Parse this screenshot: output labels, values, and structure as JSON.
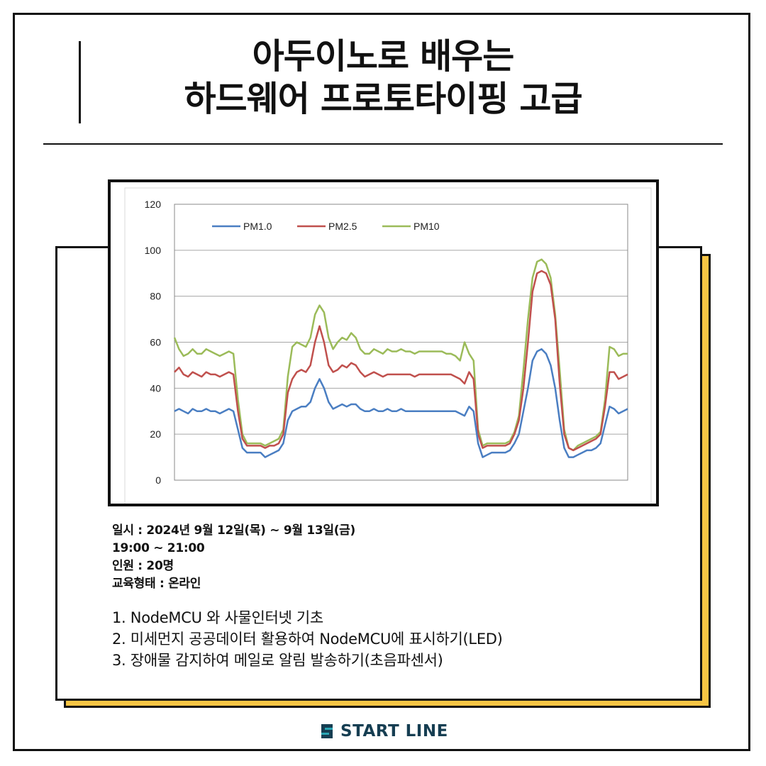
{
  "title": {
    "line1": "아두이노로 배우는",
    "line2": "하드웨어 프로토타이핑 고급"
  },
  "details": {
    "date": "일시 : 2024년 9월 12일(목) ~ 9월 13일(금)",
    "time": "19:00 ~ 21:00",
    "capacity": "인원 : 20명",
    "format": "교육형태 : 온라인"
  },
  "curriculum": [
    "1. NodeMCU 와 사물인터넷 기초",
    "2. 미세먼지 공공데이터 활용하여 NodeMCU에 표시하기(LED)",
    "3. 장애물 감지하여 메일로 알림 발송하기(초음파센서)"
  ],
  "logo": {
    "text": "START LINE",
    "icon": "start-line-s-icon"
  },
  "colors": {
    "accent_yellow": "#f7c544",
    "pm1": "#4a7ec2",
    "pm25": "#c0504d",
    "pm10": "#9bbb59",
    "logo_dark": "#163e52",
    "logo_teal": "#2aa6b5"
  },
  "chart_data": {
    "type": "line",
    "ylim": [
      0,
      120
    ],
    "yticks": [
      0,
      20,
      40,
      60,
      80,
      100,
      120
    ],
    "grid": true,
    "legend": "top-left",
    "x": [
      0,
      1,
      2,
      3,
      4,
      5,
      6,
      7,
      8,
      9,
      10,
      11,
      12,
      13,
      14,
      15,
      16,
      17,
      18,
      19,
      20,
      21,
      22,
      23,
      24,
      25,
      26,
      27,
      28,
      29,
      30,
      31,
      32,
      33,
      34,
      35,
      36,
      37,
      38,
      39,
      40,
      41,
      42,
      43,
      44,
      45,
      46,
      47,
      48,
      49,
      50,
      51,
      52,
      53,
      54,
      55,
      56,
      57,
      58,
      59,
      60,
      61,
      62,
      63,
      64,
      65,
      66,
      67,
      68,
      69,
      70,
      71,
      72,
      73,
      74,
      75,
      76,
      77,
      78,
      79,
      80,
      81,
      82,
      83,
      84,
      85,
      86,
      87,
      88,
      89,
      90,
      91,
      92,
      93,
      94,
      95,
      96,
      97,
      98,
      99,
      100
    ],
    "series": [
      {
        "name": "PM1.0",
        "values": [
          30,
          31,
          30,
          29,
          31,
          30,
          30,
          31,
          30,
          30,
          29,
          30,
          31,
          30,
          22,
          14,
          12,
          12,
          12,
          12,
          10,
          11,
          12,
          13,
          16,
          26,
          30,
          31,
          32,
          32,
          34,
          40,
          44,
          40,
          34,
          31,
          32,
          33,
          32,
          33,
          33,
          31,
          30,
          30,
          31,
          30,
          30,
          31,
          30,
          30,
          31,
          30,
          30,
          30,
          30,
          30,
          30,
          30,
          30,
          30,
          30,
          30,
          30,
          29,
          28,
          32,
          30,
          16,
          10,
          11,
          12,
          12,
          12,
          12,
          13,
          16,
          20,
          30,
          40,
          52,
          56,
          57,
          55,
          50,
          40,
          26,
          14,
          10,
          10,
          11,
          12,
          13,
          13,
          14,
          16,
          24,
          32,
          31,
          29,
          30,
          31
        ]
      },
      {
        "name": "PM2.5",
        "values": [
          47,
          49,
          46,
          45,
          47,
          46,
          45,
          47,
          46,
          46,
          45,
          46,
          47,
          46,
          30,
          18,
          15,
          15,
          15,
          15,
          14,
          15,
          15,
          16,
          20,
          38,
          44,
          47,
          48,
          47,
          50,
          60,
          67,
          60,
          50,
          47,
          48,
          50,
          49,
          51,
          50,
          47,
          45,
          46,
          47,
          46,
          45,
          46,
          46,
          46,
          46,
          46,
          46,
          45,
          46,
          46,
          46,
          46,
          46,
          46,
          46,
          46,
          45,
          44,
          42,
          47,
          44,
          20,
          14,
          15,
          15,
          15,
          15,
          15,
          16,
          20,
          26,
          40,
          60,
          82,
          90,
          91,
          90,
          85,
          70,
          42,
          20,
          14,
          13,
          14,
          15,
          16,
          17,
          18,
          20,
          32,
          47,
          47,
          44,
          45,
          46
        ]
      },
      {
        "name": "PM10",
        "values": [
          62,
          57,
          54,
          55,
          57,
          55,
          55,
          57,
          56,
          55,
          54,
          55,
          56,
          55,
          35,
          20,
          16,
          16,
          16,
          16,
          15,
          16,
          17,
          18,
          22,
          45,
          58,
          60,
          59,
          58,
          62,
          72,
          76,
          73,
          62,
          57,
          60,
          62,
          61,
          64,
          62,
          57,
          55,
          55,
          57,
          56,
          55,
          57,
          56,
          56,
          57,
          56,
          56,
          55,
          56,
          56,
          56,
          56,
          56,
          56,
          55,
          55,
          54,
          52,
          60,
          55,
          52,
          22,
          15,
          16,
          16,
          16,
          16,
          16,
          17,
          21,
          28,
          48,
          70,
          88,
          95,
          96,
          94,
          88,
          72,
          48,
          22,
          14,
          13,
          15,
          16,
          17,
          18,
          19,
          21,
          35,
          58,
          57,
          54,
          55,
          55
        ]
      }
    ]
  }
}
